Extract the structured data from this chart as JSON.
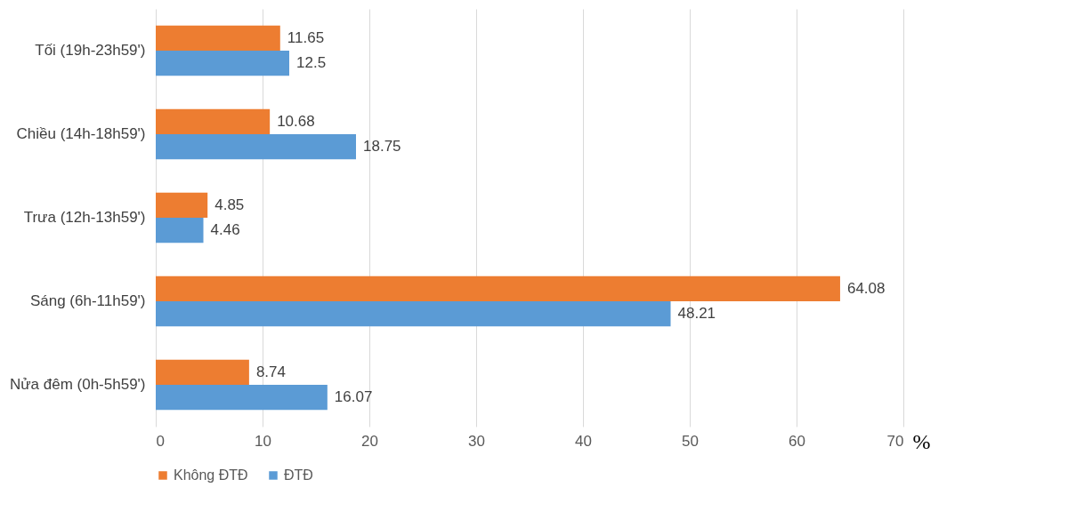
{
  "chart_data": {
    "type": "bar",
    "orientation": "horizontal",
    "categories": [
      "Tối (19h-23h59')",
      "Chiều (14h-18h59')",
      "Trưa (12h-13h59')",
      "Sáng (6h-11h59')",
      "Nửa đêm (0h-5h59')"
    ],
    "series": [
      {
        "name": "Không ĐTĐ",
        "color": "#ed7d31",
        "values": [
          11.65,
          10.68,
          4.85,
          64.08,
          8.74
        ]
      },
      {
        "name": "ĐTĐ",
        "color": "#5b9bd5",
        "values": [
          12.5,
          18.75,
          4.46,
          48.21,
          16.07
        ]
      }
    ],
    "xlim": [
      0,
      70
    ],
    "xticks": [
      0,
      10,
      20,
      30,
      40,
      50,
      60,
      70
    ],
    "xlabel": "%",
    "grid": "x",
    "legend": "bottom",
    "data_labels": true
  }
}
